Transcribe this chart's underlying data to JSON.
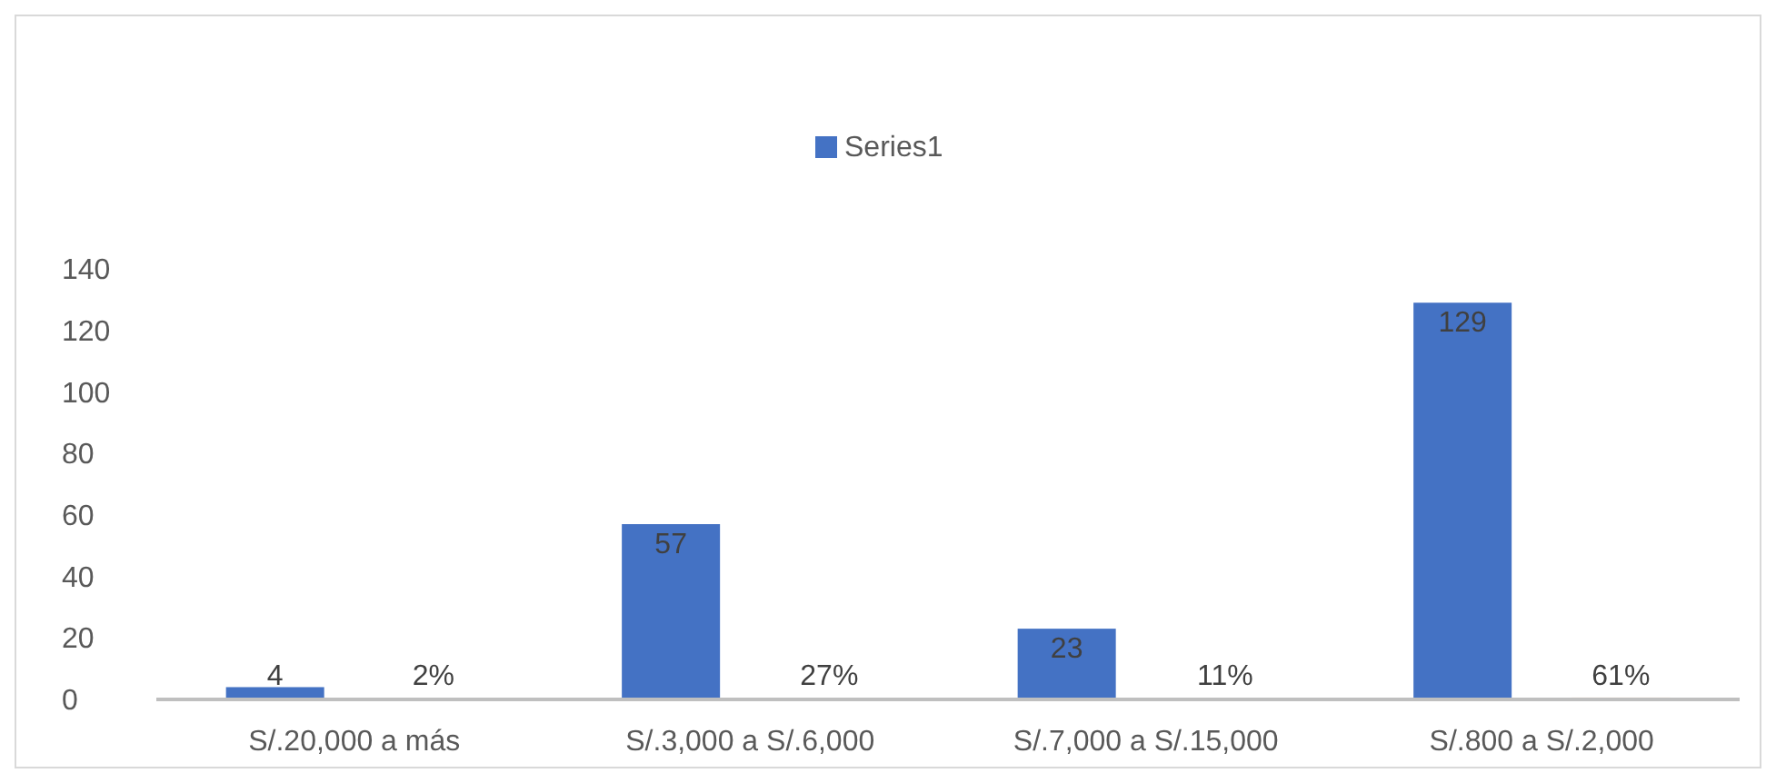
{
  "chart_data": {
    "type": "bar",
    "categories": [
      "S/.20,000 a más",
      "S/.3,000 a S/.6,000",
      "S/.7,000 a S/.15,000",
      "S/.800 a S/.2,000"
    ],
    "series": [
      {
        "name": "Series1",
        "color": "#4472c4",
        "values": [
          4,
          57,
          23,
          129
        ],
        "value_labels": [
          "4",
          "57",
          "23",
          "129"
        ]
      },
      {
        "color": "#f4b183",
        "values": [
          0.02,
          0.27,
          0.11,
          0.61
        ],
        "value_labels": [
          "2%",
          "27%",
          "11%",
          "61%"
        ]
      }
    ],
    "ylim": [
      0,
      140
    ],
    "yticks": [
      0,
      20,
      40,
      60,
      80,
      100,
      120,
      140
    ],
    "grid": false,
    "legend": "top"
  }
}
